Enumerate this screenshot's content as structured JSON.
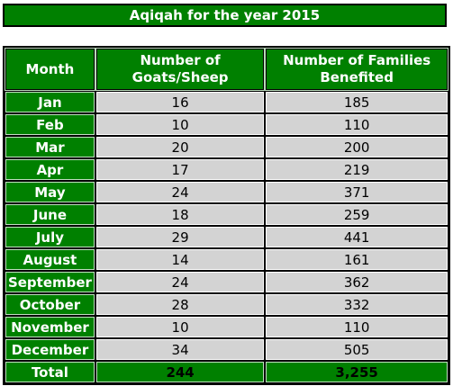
{
  "title": "Aqiqah for the year 2015",
  "headers": {
    "month": "Month",
    "goats_line1": "Number of",
    "goats_line2": "Goats/Sheep",
    "families_line1": "Number of Families",
    "families_line2": "Benefited"
  },
  "rows": [
    {
      "month": "Jan",
      "goats": "16",
      "families": "185"
    },
    {
      "month": "Feb",
      "goats": "10",
      "families": "110"
    },
    {
      "month": "Mar",
      "goats": "20",
      "families": "200"
    },
    {
      "month": "Apr",
      "goats": "17",
      "families": "219"
    },
    {
      "month": "May",
      "goats": "24",
      "families": "371"
    },
    {
      "month": "June",
      "goats": "18",
      "families": "259"
    },
    {
      "month": "July",
      "goats": "29",
      "families": "441"
    },
    {
      "month": "August",
      "goats": "14",
      "families": "161"
    },
    {
      "month": "September",
      "goats": "24",
      "families": "362"
    },
    {
      "month": "October",
      "goats": "28",
      "families": "332"
    },
    {
      "month": "November",
      "goats": "10",
      "families": "110"
    },
    {
      "month": "December",
      "goats": "34",
      "families": "505"
    }
  ],
  "total": {
    "label": "Total",
    "goats": "244",
    "families": "3,255"
  },
  "colors": {
    "header_green": "#008000",
    "cell_grey": "#d3d3d3"
  }
}
